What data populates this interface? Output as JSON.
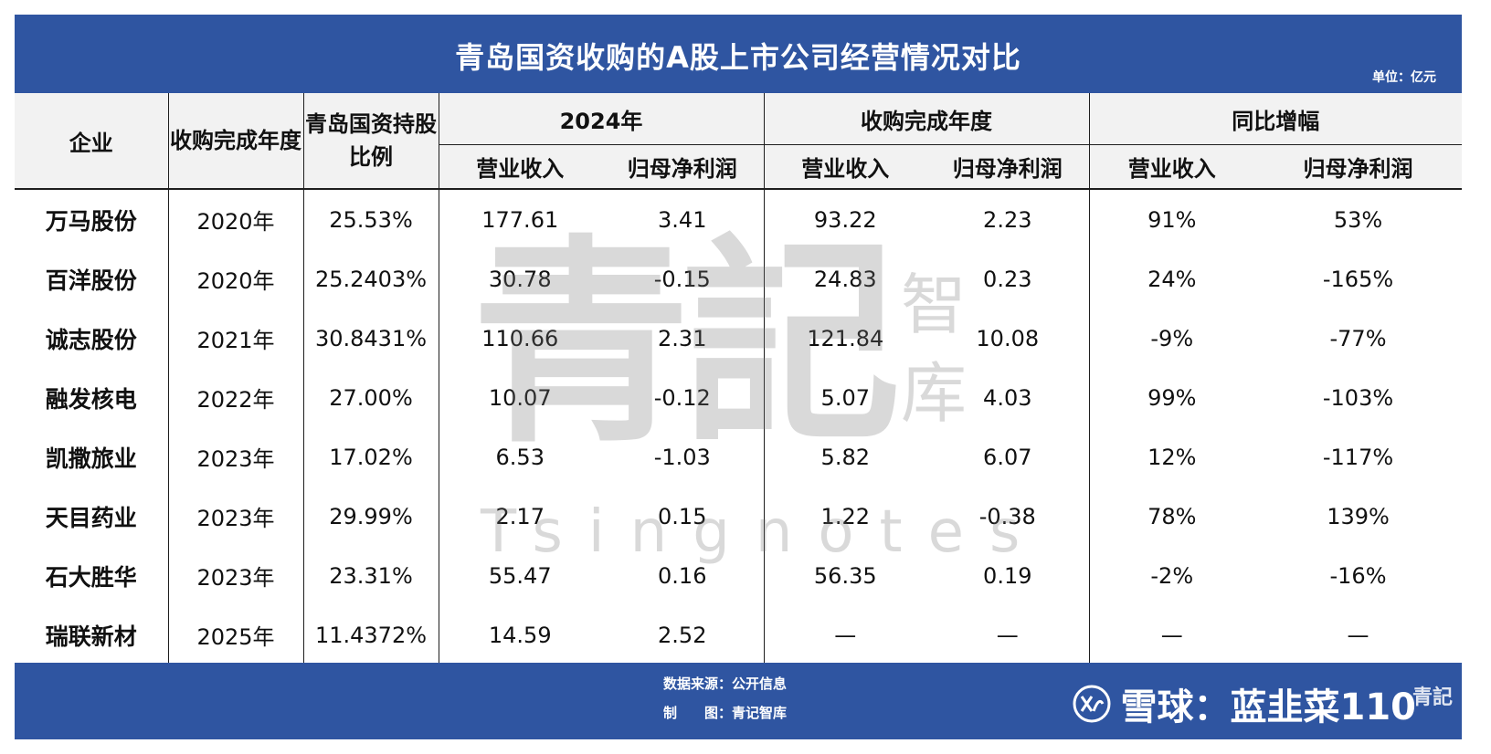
{
  "title": "青岛国资收购的A股上市公司经营情况对比",
  "unit": "单位：亿元",
  "headers": {
    "company": "企业",
    "year": "收购完成年度",
    "share": "青岛国资持股比例",
    "group_2024": "2024年",
    "group_acq": "收购完成年度",
    "group_yoy": "同比增幅",
    "revenue": "营业收入",
    "profit": "归母净利润"
  },
  "rows": [
    {
      "name": "万马股份",
      "year": "2020年",
      "share": "25.53%",
      "rev2024": "177.61",
      "np2024": "3.41",
      "revAcq": "93.22",
      "npAcq": "2.23",
      "revYoy": "91%",
      "npYoy": "53%"
    },
    {
      "name": "百洋股份",
      "year": "2020年",
      "share": "25.2403%",
      "rev2024": "30.78",
      "np2024": "-0.15",
      "revAcq": "24.83",
      "npAcq": "0.23",
      "revYoy": "24%",
      "npYoy": "-165%"
    },
    {
      "name": "诚志股份",
      "year": "2021年",
      "share": "30.8431%",
      "rev2024": "110.66",
      "np2024": "2.31",
      "revAcq": "121.84",
      "npAcq": "10.08",
      "revYoy": "-9%",
      "npYoy": "-77%"
    },
    {
      "name": "融发核电",
      "year": "2022年",
      "share": "27.00%",
      "rev2024": "10.07",
      "np2024": "-0.12",
      "revAcq": "5.07",
      "npAcq": "4.03",
      "revYoy": "99%",
      "npYoy": "-103%"
    },
    {
      "name": "凯撒旅业",
      "year": "2023年",
      "share": "17.02%",
      "rev2024": "6.53",
      "np2024": "-1.03",
      "revAcq": "5.82",
      "npAcq": "6.07",
      "revYoy": "12%",
      "npYoy": "-117%"
    },
    {
      "name": "天目药业",
      "year": "2023年",
      "share": "29.99%",
      "rev2024": "2.17",
      "np2024": "0.15",
      "revAcq": "1.22",
      "npAcq": "-0.38",
      "revYoy": "78%",
      "npYoy": "139%"
    },
    {
      "name": "石大胜华",
      "year": "2023年",
      "share": "23.31%",
      "rev2024": "55.47",
      "np2024": "0.16",
      "revAcq": "56.35",
      "npAcq": "0.19",
      "revYoy": "-2%",
      "npYoy": "-16%"
    },
    {
      "name": "瑞联新材",
      "year": "2025年",
      "share": "11.4372%",
      "rev2024": "14.59",
      "np2024": "2.52",
      "revAcq": "—",
      "npAcq": "—",
      "revYoy": "—",
      "npYoy": "—"
    }
  ],
  "footer": {
    "source": "数据来源：公开信息",
    "made_by": "制　　图：青记智库"
  },
  "watermark": {
    "big": "青記",
    "small": "智库",
    "latin": "Tsingnotes"
  },
  "xueqiu": {
    "text": "雪球：蓝韭菜110",
    "stamp": "青記"
  },
  "colors": {
    "header_bg": "#2f55a1",
    "table_head_bg": "#f2f2f2"
  }
}
